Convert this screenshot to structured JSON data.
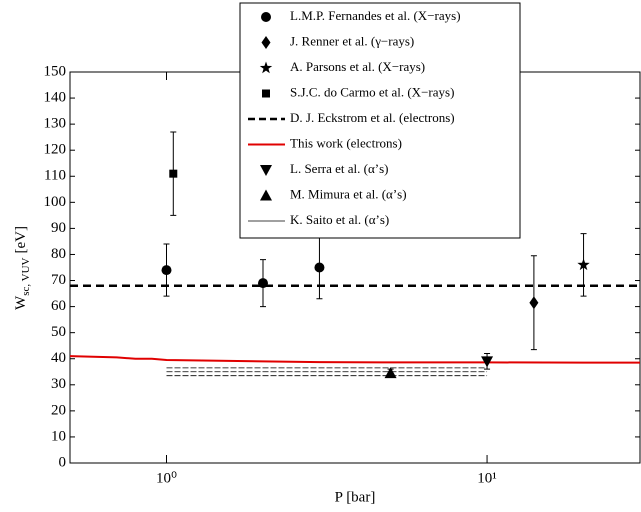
{
  "chart_data": {
    "type": "scatter",
    "xlabel": "P [bar]",
    "ylabel": {
      "main": "W",
      "sub": "sc, VUV",
      "unit": "[eV]"
    },
    "xscale": "log",
    "xlim": [
      0.5,
      30
    ],
    "xticks": [
      {
        "value": 1,
        "label": "10⁰"
      },
      {
        "value": 10,
        "label": "10¹"
      }
    ],
    "ylim": [
      0,
      150
    ],
    "yticks": [
      0,
      10,
      20,
      30,
      40,
      50,
      60,
      70,
      80,
      90,
      100,
      110,
      120,
      130,
      140,
      150
    ],
    "series": [
      {
        "name": "L.M.P. Fernandes et al. (X−rays)",
        "marker": "circle",
        "color": "#000000",
        "x": [
          1,
          2,
          3
        ],
        "values": [
          74,
          69,
          75
        ],
        "errors": [
          10,
          9,
          12
        ]
      },
      {
        "name": "J. Renner et al. (γ−rays)",
        "marker": "diamond",
        "color": "#000000",
        "x": [
          14
        ],
        "values": [
          61.5
        ],
        "errors": [
          18
        ]
      },
      {
        "name": "A. Parsons et al. (X−rays)",
        "marker": "star",
        "color": "#000000",
        "x": [
          20
        ],
        "values": [
          76
        ],
        "errors": [
          12
        ]
      },
      {
        "name": "S.J.C. do Carmo et al. (X−rays)",
        "marker": "square",
        "color": "#000000",
        "x": [
          1.05
        ],
        "values": [
          111
        ],
        "errors": [
          16
        ]
      },
      {
        "name": "D. J. Eckstrom et al. (electrons)",
        "marker": "dashed",
        "color": "#000000",
        "x": [
          0.5,
          30
        ],
        "values": [
          68,
          68
        ]
      },
      {
        "name": "This work (electrons)",
        "marker": "line",
        "color": "#e00000",
        "x": [
          0.5,
          0.7,
          0.8,
          0.9,
          1,
          2,
          3,
          5,
          10,
          20,
          30
        ],
        "values": [
          41,
          40.5,
          40,
          40,
          39.5,
          39,
          38.7,
          38.6,
          38.6,
          38.5,
          38.5
        ]
      },
      {
        "name": "L. Serra et al. (α’s)",
        "marker": "triangle-down",
        "color": "#000000",
        "x": [
          10
        ],
        "values": [
          39
        ],
        "errors": [
          3
        ]
      },
      {
        "name": "M. Mimura et al. (α’s)",
        "marker": "triangle-up",
        "color": "#000000",
        "x": [
          5
        ],
        "values": [
          34.5
        ],
        "errors": [
          1.5
        ]
      },
      {
        "name": "K. Saito et al. (α’s)",
        "marker": "thin",
        "color": "#000000",
        "x": [
          1,
          10
        ],
        "levels": [
          33.5,
          35,
          36.5
        ]
      }
    ]
  }
}
